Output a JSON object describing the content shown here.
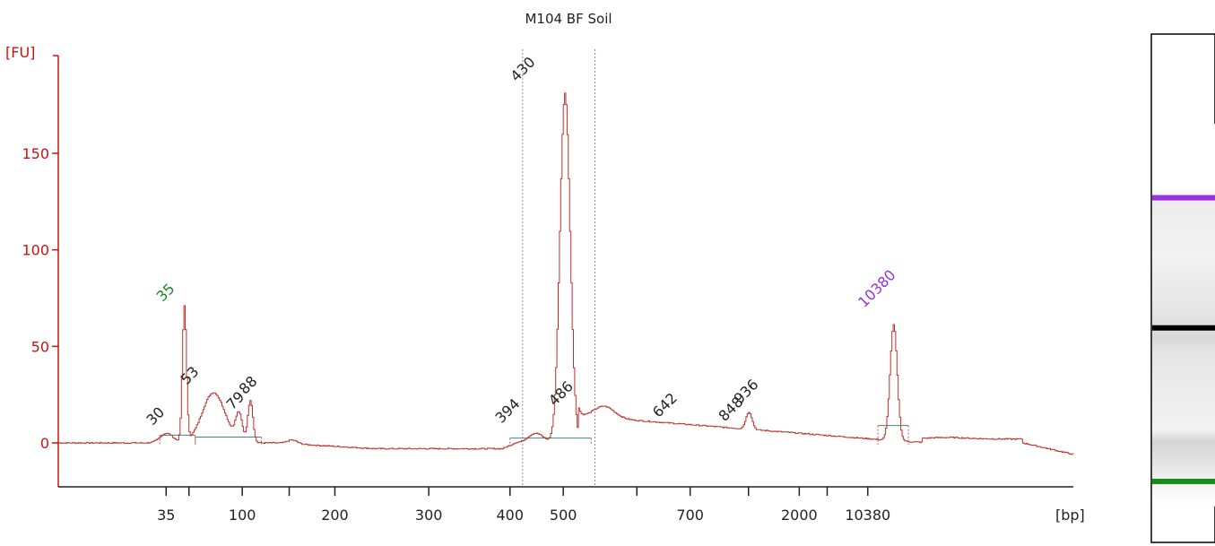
{
  "chart_data": {
    "type": "line",
    "title": "M104 BF Soil",
    "ylabel": "[FU]",
    "xlabel": "[bp]",
    "ylim": [
      -20,
      190
    ],
    "y_ticks": [
      0,
      50,
      100,
      150
    ],
    "x_tick_labels": [
      "35",
      "100",
      "200",
      "300",
      "400",
      "500",
      "700",
      "2000",
      "10380"
    ],
    "peak_labels": [
      {
        "label": "35",
        "size": 35,
        "fu": 70,
        "color": "#1a8a1a"
      },
      {
        "label": "30",
        "size": 30,
        "fu": 6,
        "color": "#222222"
      },
      {
        "label": "53",
        "size": 53,
        "fu": 27,
        "color": "#222222"
      },
      {
        "label": "79",
        "size": 79,
        "fu": 14,
        "color": "#222222"
      },
      {
        "label": "88",
        "size": 88,
        "fu": 22,
        "color": "#222222"
      },
      {
        "label": "394",
        "size": 394,
        "fu": 7,
        "color": "#222222"
      },
      {
        "label": "430",
        "size": 430,
        "fu": 184,
        "color": "#222222"
      },
      {
        "label": "486",
        "size": 486,
        "fu": 16,
        "color": "#222222"
      },
      {
        "label": "642",
        "size": 642,
        "fu": 10,
        "color": "#222222"
      },
      {
        "label": "848",
        "size": 848,
        "fu": 8,
        "color": "#222222"
      },
      {
        "label": "936",
        "size": 936,
        "fu": 17,
        "color": "#222222"
      },
      {
        "label": "10380",
        "size": 10380,
        "fu": 67,
        "color": "#9b30e0"
      }
    ],
    "trace": {
      "color": "#c0302a",
      "baseline_fu": 0,
      "noise_fu": 0.6,
      "peaks": [
        {
          "center_s": 42.5,
          "fu": 5,
          "width_s": 2.5
        },
        {
          "center_s": 49.5,
          "fu": 70,
          "width_s": 0.8
        },
        {
          "center_s": 61,
          "fu": 26,
          "width_s": 4.5
        },
        {
          "center_s": 71,
          "fu": 14,
          "width_s": 1.3
        },
        {
          "center_s": 75.5,
          "fu": 22,
          "width_s": 1.0
        },
        {
          "center_s": 92,
          "fu": 2,
          "width_s": 2.0
        },
        {
          "center_s": 188,
          "fu": 5,
          "width_s": 3.0
        },
        {
          "center_s": 199.5,
          "fu": 181,
          "width_s": 2.0
        },
        {
          "center_s": 215,
          "fu": 6,
          "width_s": 4.0
        },
        {
          "center_s": 272,
          "fu": 9,
          "width_s": 1.2
        },
        {
          "center_s": 329,
          "fu": 60,
          "width_s": 1.4
        },
        {
          "center_s": 350,
          "fu": 0.8,
          "width_s": 8.0
        }
      ],
      "shoulder": {
        "start_s": 205,
        "end_s": 340,
        "start_fu": 14,
        "end_fu": 0
      }
    },
    "integration_baselines": [
      {
        "from_s": 40,
        "to_s": 54,
        "fu": 4
      },
      {
        "from_s": 54,
        "to_s": 80,
        "fu": 3
      },
      {
        "from_s": 178,
        "to_s": 210,
        "fu": 2.5
      },
      {
        "from_s": 323,
        "to_s": 335,
        "fu": 9
      }
    ],
    "region_markers_s": [
      183,
      211.5
    ],
    "gel_bands": [
      {
        "y_frac": 0.322,
        "color": "#9b30e0",
        "intensity": 1
      },
      {
        "y_frac": 0.578,
        "color": "#000000",
        "intensity": 1
      },
      {
        "y_frac": 0.88,
        "color": "#1a8a1a",
        "intensity": 1
      }
    ],
    "grid": false,
    "legend": "none"
  }
}
